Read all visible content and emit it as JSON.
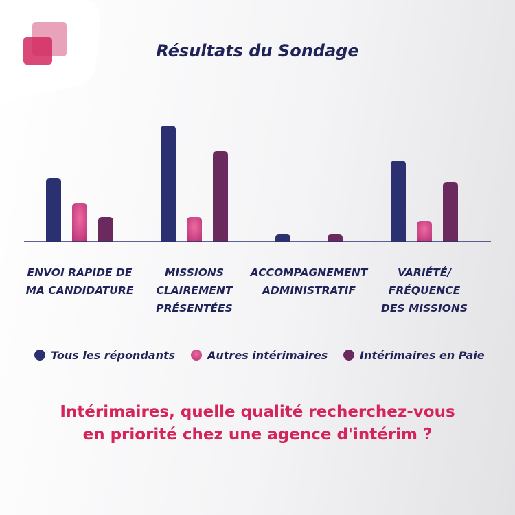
{
  "chart_data": {
    "type": "bar",
    "title": "Résultats du Sondage",
    "categories": [
      "ENVOI RAPIDE DE\nMA CANDIDATURE",
      "MISSIONS\nCLAIREMENT\nPRÉSENTÉES",
      "ACCOMPAGNEMENT\nADMINISTRATIF",
      "VARIÉTÉ/\nFRÉQUENCE\nDES MISSIONS"
    ],
    "series": [
      {
        "name": "Tous les répondants",
        "color": "#2b3070",
        "values": [
          93,
          169,
          11,
          118
        ]
      },
      {
        "name": "Autres intérimaires",
        "color": "#e0508a",
        "values": [
          56,
          36,
          0,
          30
        ]
      },
      {
        "name": "Intérimaires en Paie",
        "color": "#6b2a5e",
        "values": [
          36,
          132,
          11,
          87
        ]
      }
    ],
    "question": "Intérimaires, quelle qualité recherchez-vous\nen priorité chez une agence d'intérim ?"
  }
}
